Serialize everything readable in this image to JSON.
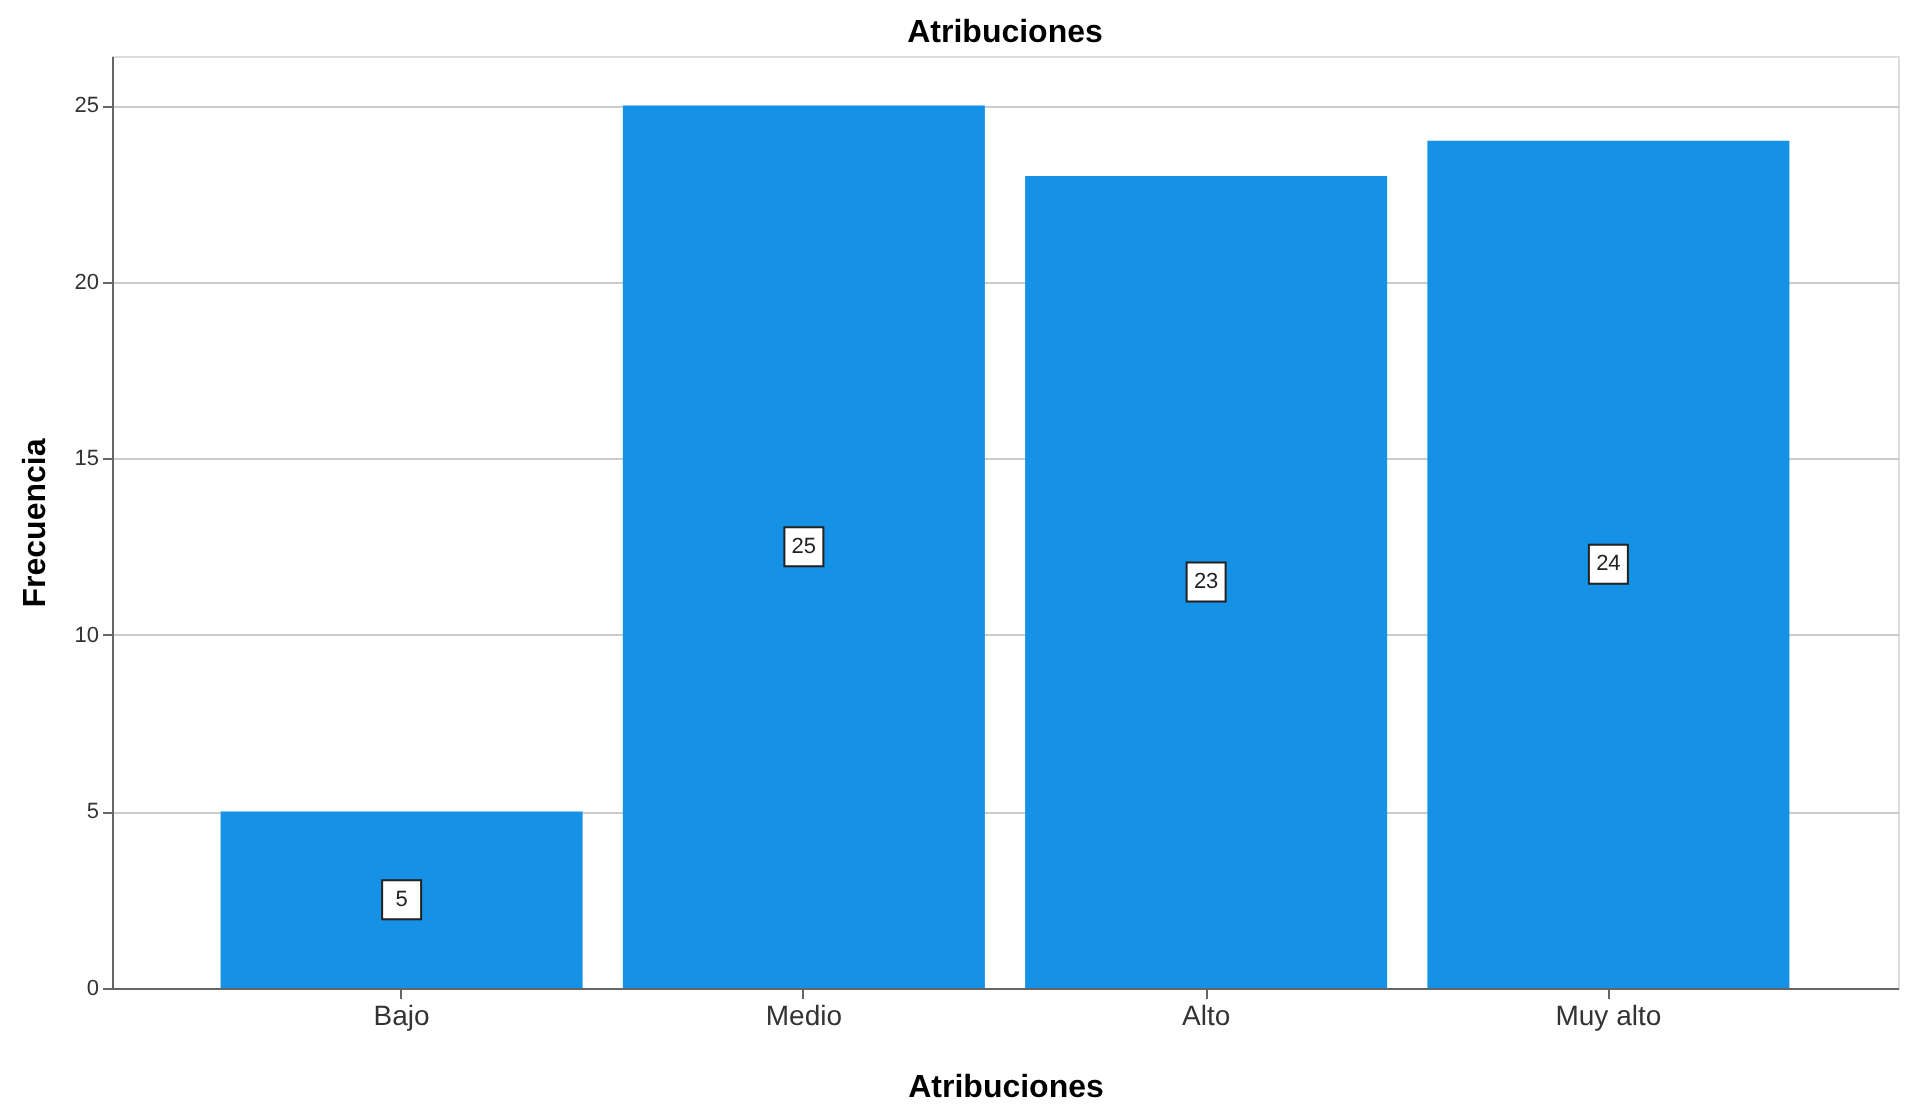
{
  "chart_data": {
    "type": "bar",
    "title": "Atribuciones",
    "xlabel": "Atribuciones",
    "ylabel": "Frecuencia",
    "categories": [
      "Bajo",
      "Medio",
      "Alto",
      "Muy alto"
    ],
    "values": [
      5,
      25,
      23,
      24
    ],
    "color": "#1591e6",
    "ylim": [
      0,
      26.4
    ],
    "yticks": [
      0,
      5,
      10,
      15,
      20,
      25
    ],
    "grid": "y",
    "data_labels": true
  }
}
